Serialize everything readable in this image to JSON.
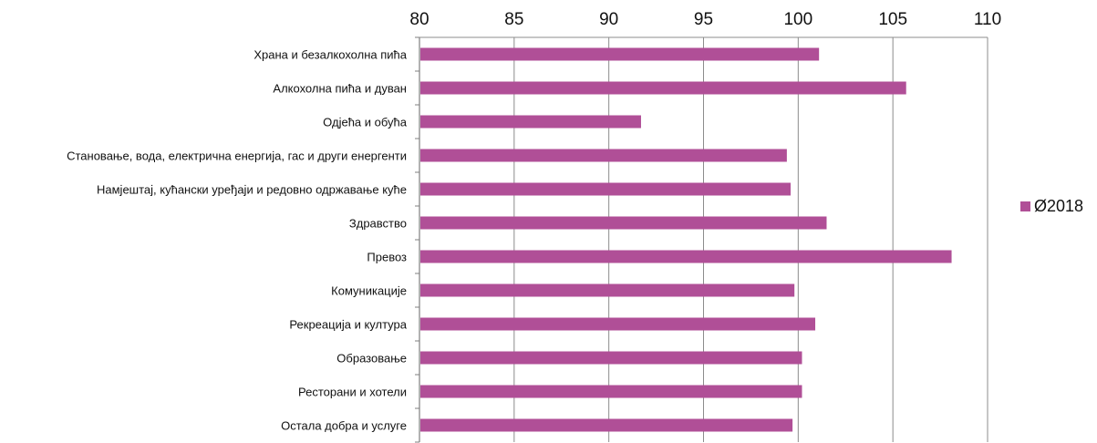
{
  "chart_data": {
    "type": "bar",
    "orientation": "horizontal",
    "title": "",
    "xlabel": "",
    "ylabel": "",
    "xlim": [
      80,
      110
    ],
    "x_ticks": [
      80,
      85,
      90,
      95,
      100,
      105,
      110
    ],
    "x_axis_position": "top",
    "grid": true,
    "legend_position": "right",
    "bar_color": "#b04f97",
    "categories": [
      "Храна и безалкохолна пића",
      "Алкохолна пића и дуван",
      "Одјећа и обућа",
      "Становање, вода, електрична енергија, гас и други енергенти",
      "Намјештај, кућански уређаји и редовно одржавање куће",
      "Здравство",
      "Превоз",
      "Комуникације",
      "Рекреација и култура",
      "Образовање",
      "Ресторани и хотели",
      "Остала добра и услуге"
    ],
    "series": [
      {
        "name": "Ø2018",
        "values": [
          101.1,
          105.7,
          91.7,
          99.4,
          99.6,
          101.5,
          108.1,
          99.8,
          100.9,
          100.2,
          100.2,
          99.7
        ]
      }
    ]
  }
}
